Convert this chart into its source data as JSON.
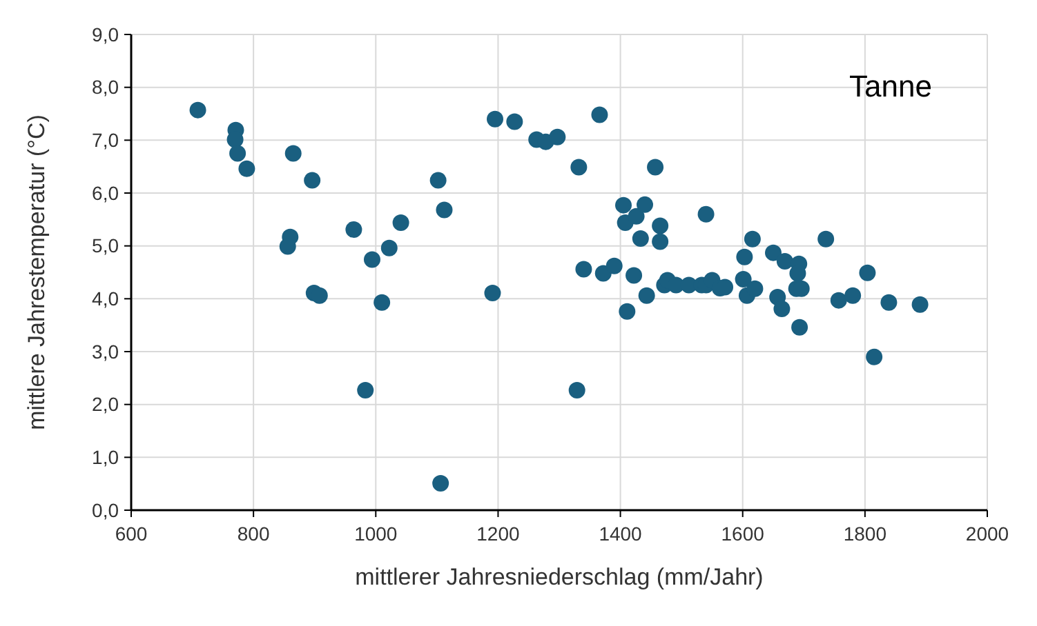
{
  "chart_data": {
    "type": "scatter",
    "xlabel": "mittlerer Jahresniederschlag (mm/Jahr)",
    "ylabel": "mittlere Jahrestemperatur (°C)",
    "annotations": [
      "Tanne"
    ],
    "xlim": [
      600,
      2000
    ],
    "xticks": [
      600,
      800,
      1000,
      1200,
      1400,
      1600,
      1800,
      2000
    ],
    "ylim": [
      0,
      9
    ],
    "yticks": [
      {
        "value": 0,
        "label": "0,0"
      },
      {
        "value": 1,
        "label": "1,0"
      },
      {
        "value": 2,
        "label": "2,0"
      },
      {
        "value": 3,
        "label": "3,0"
      },
      {
        "value": 4,
        "label": "4,0"
      },
      {
        "value": 5,
        "label": "5,0"
      },
      {
        "value": 6,
        "label": "6,0"
      },
      {
        "value": 7,
        "label": "7,0"
      },
      {
        "value": 8,
        "label": "8,0"
      },
      {
        "value": 9,
        "label": "9,0"
      }
    ],
    "grid": true,
    "marker": "circle",
    "series": [
      {
        "color": "#1a5f80",
        "x": [
          709,
          771,
          770,
          774,
          789,
          865,
          896,
          860,
          856,
          899,
          908,
          964,
          994,
          1010,
          1022,
          1041,
          983,
          1102,
          1112,
          1106,
          1191,
          1195,
          1227,
          1263,
          1278,
          1297,
          1366,
          1332,
          1457,
          1329,
          1340,
          1372,
          1390,
          1405,
          1408,
          1426,
          1440,
          1433,
          1465,
          1465,
          1422,
          1411,
          1443,
          1472,
          1477,
          1491,
          1512,
          1533,
          1540,
          1550,
          1540,
          1563,
          1571,
          1601,
          1603,
          1607,
          1616,
          1620,
          1650,
          1669,
          1657,
          1664,
          1692,
          1690,
          1688,
          1696,
          1693,
          1736,
          1757,
          1780,
          1804,
          1815,
          1839,
          1890
        ],
        "values": [
          7.57,
          7.19,
          7.01,
          6.75,
          6.46,
          6.75,
          6.24,
          5.17,
          4.99,
          4.11,
          4.06,
          5.31,
          4.74,
          3.93,
          4.96,
          5.44,
          2.27,
          6.24,
          5.68,
          0.51,
          4.11,
          7.4,
          7.35,
          7.01,
          6.97,
          7.06,
          7.48,
          6.49,
          6.49,
          2.27,
          4.56,
          4.48,
          4.62,
          5.77,
          5.44,
          5.56,
          5.78,
          5.14,
          5.38,
          5.08,
          4.44,
          3.76,
          4.06,
          4.26,
          4.35,
          4.26,
          4.26,
          4.26,
          4.26,
          4.35,
          5.6,
          4.2,
          4.22,
          4.37,
          4.79,
          4.06,
          5.13,
          4.19,
          4.87,
          4.71,
          4.03,
          3.81,
          4.66,
          4.48,
          4.19,
          4.19,
          3.46,
          5.13,
          3.97,
          4.06,
          4.49,
          2.9,
          3.93,
          3.89
        ]
      }
    ]
  }
}
